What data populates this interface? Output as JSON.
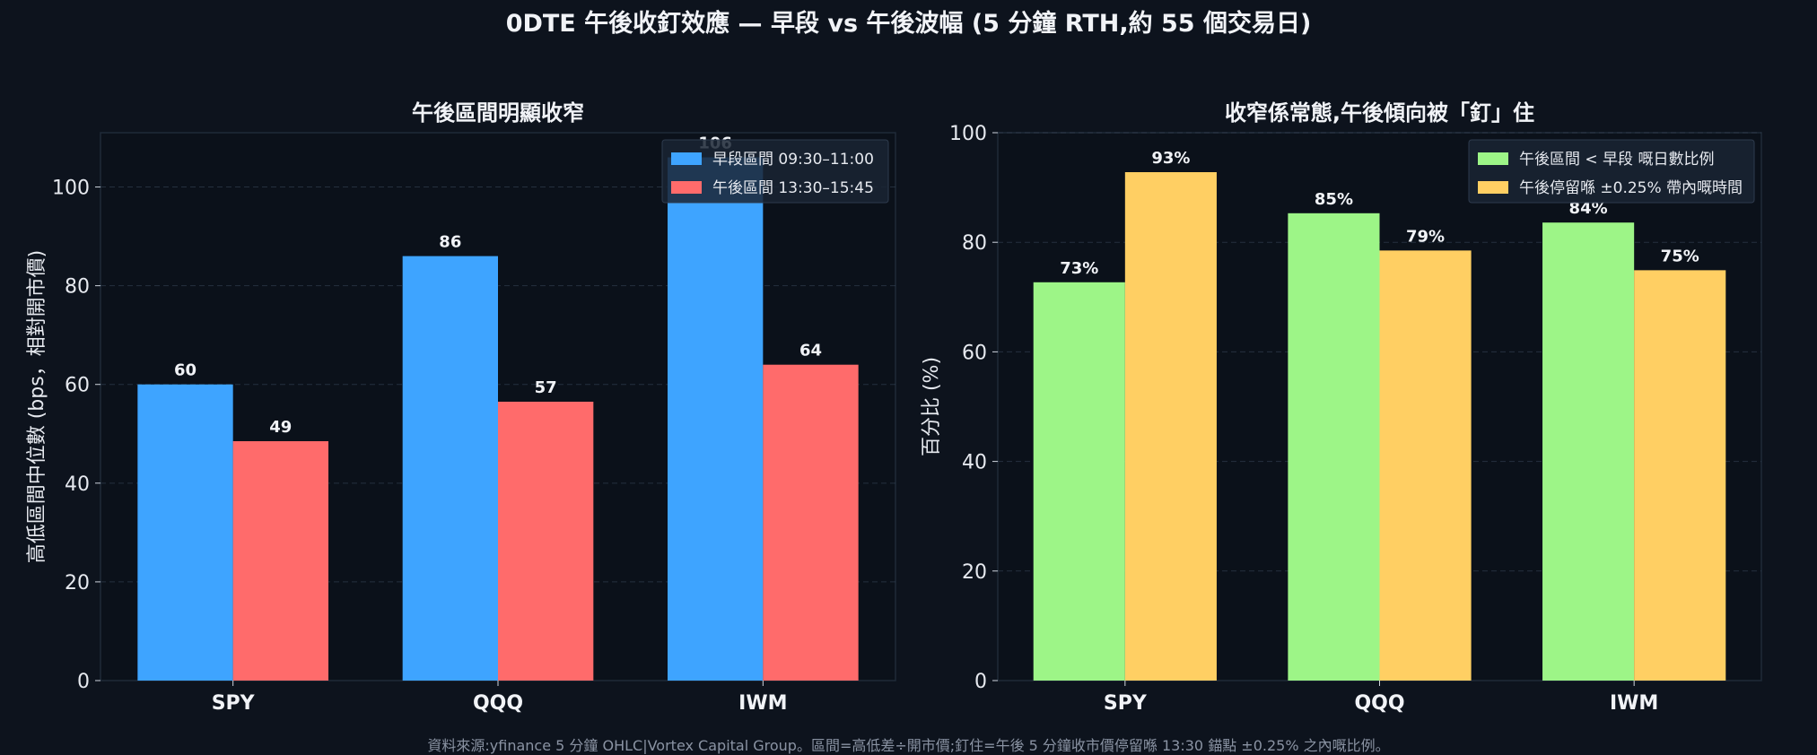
{
  "title": "0DTE 午後收釘效應 — 早段 vs 午後波幅 (5 分鐘 RTH,約 55 個交易日)",
  "footnote": "資料來源:yfinance 5 分鐘 OHLC|Vortex Capital Group。區間=高低差÷開市價;釘住=午後 5 分鐘收市價停留喺 13:30 錨點 ±0.25% 之內嘅比例。",
  "colors": {
    "background": "#0d131d",
    "axes_bg": "#0b111a",
    "grid": "#3b4a5c",
    "early": "#3ea4ff",
    "afternoon": "#ff6b6b",
    "ratio": "#9df587",
    "pinned": "#ffcf63"
  },
  "chart_data": [
    {
      "type": "bar",
      "title": "午後區間明顯收窄",
      "ylabel": "高低區間中位數 (bps，相對開市價)",
      "xlabel": "",
      "categories": [
        "SPY",
        "QQQ",
        "IWM"
      ],
      "ylim": [
        0,
        111
      ],
      "yticks": [
        0,
        20,
        40,
        60,
        80,
        100
      ],
      "grid": true,
      "legend": "top-right",
      "series": [
        {
          "name": "早段區間 09:30–11:00",
          "values": [
            60,
            86,
            106
          ],
          "labels": [
            "60",
            "86",
            "106"
          ],
          "color": "#3ea4ff"
        },
        {
          "name": "午後區間 13:30–15:45",
          "values": [
            48.5,
            56.5,
            64
          ],
          "labels": [
            "49",
            "57",
            "64"
          ],
          "color": "#ff6b6b"
        }
      ]
    },
    {
      "type": "bar",
      "title": "收窄係常態,午後傾向被「釘」住",
      "ylabel": "百分比 (%)",
      "xlabel": "",
      "categories": [
        "SPY",
        "QQQ",
        "IWM"
      ],
      "ylim": [
        0,
        100
      ],
      "yticks": [
        0,
        20,
        40,
        60,
        80,
        100
      ],
      "grid": true,
      "legend": "top-right",
      "series": [
        {
          "name": "午後區間 < 早段 嘅日數比例",
          "values": [
            72.7,
            85.3,
            83.6
          ],
          "labels": [
            "73%",
            "85%",
            "84%"
          ],
          "color": "#9df587"
        },
        {
          "name": "午後停留喺 ±0.25% 帶內嘅時間",
          "values": [
            92.8,
            78.5,
            74.9
          ],
          "labels": [
            "93%",
            "79%",
            "75%"
          ],
          "color": "#ffcf63"
        }
      ]
    }
  ]
}
